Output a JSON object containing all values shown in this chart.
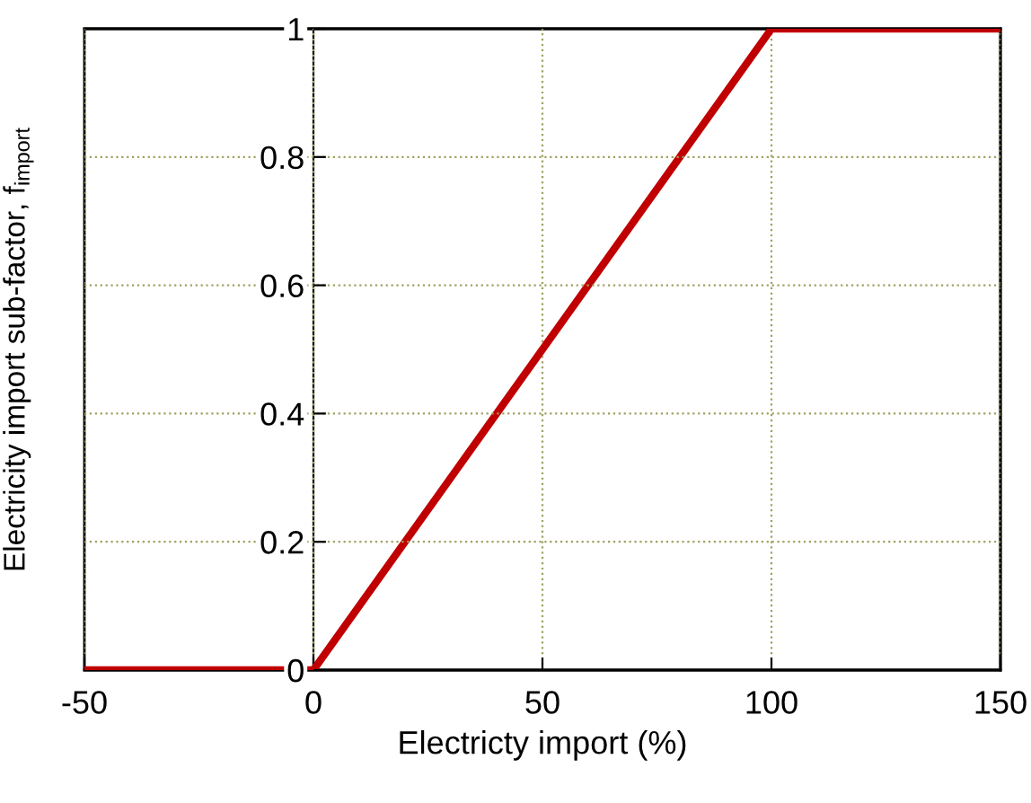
{
  "chart_data": {
    "type": "line",
    "xlabel": "Electricty import (%)",
    "ylabel": "Electricity import sub-factor, f$_{import}$",
    "x": [
      -50,
      0,
      100,
      150
    ],
    "series": [
      {
        "color": "#c00000",
        "values": [
          0,
          0,
          1,
          1
        ]
      }
    ],
    "xlim": [
      -50,
      150
    ],
    "xticks": [
      -50,
      0,
      50,
      100,
      150
    ],
    "ylim": [
      0,
      1
    ],
    "yticks": [
      0,
      0.2,
      0.4,
      0.6,
      0.8,
      1
    ],
    "grid": true,
    "marker": "none",
    "line_style": "solid"
  }
}
